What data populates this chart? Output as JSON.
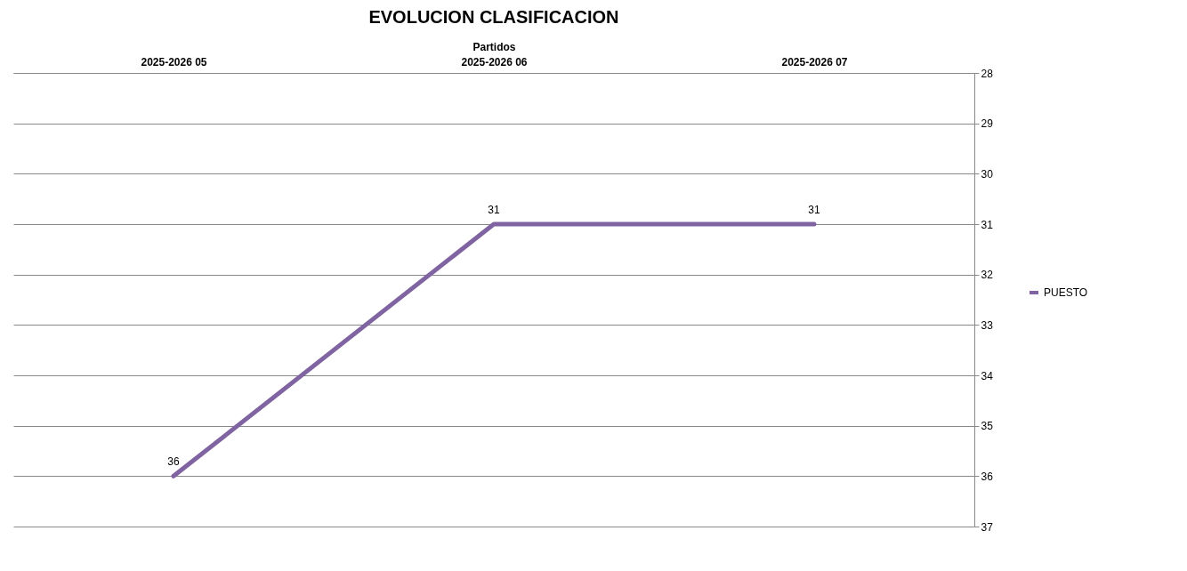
{
  "chart_data": {
    "type": "line",
    "title": "EVOLUCION CLASIFICACION",
    "xlabel": "Partidos",
    "categories": [
      "2025-2026 05",
      "2025-2026 06",
      "2025-2026 07"
    ],
    "series": [
      {
        "name": "PUESTO",
        "color": "#8064a2",
        "values": [
          36,
          31,
          31
        ]
      }
    ],
    "ylim": [
      37,
      28
    ],
    "yticks": [
      28,
      29,
      30,
      31,
      32,
      33,
      34,
      35,
      36,
      37
    ],
    "grid": "y",
    "legend": "right",
    "data_labels": true,
    "marker": "none",
    "line_style": "solid"
  }
}
